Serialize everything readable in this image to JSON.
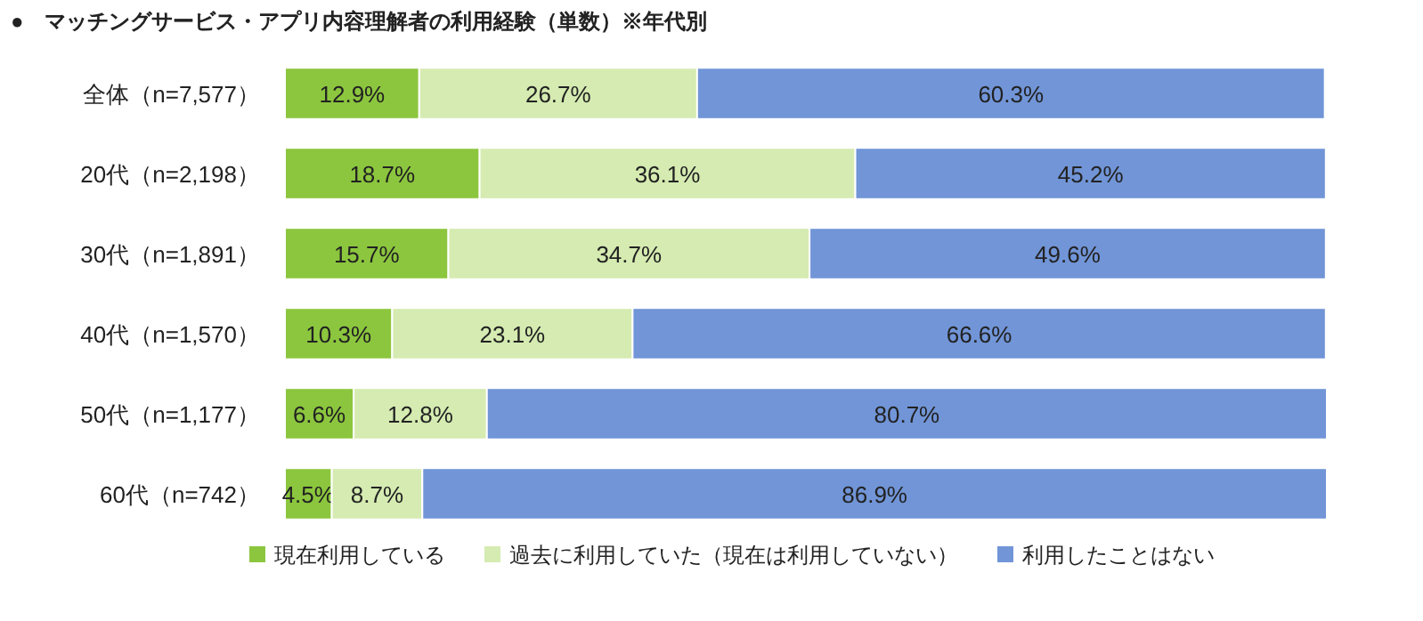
{
  "chart_data": {
    "type": "bar",
    "orientation": "horizontal",
    "stacked": true,
    "legend": "bottom",
    "title": "●　マッチングサービス・アプリ内容理解者の利用経験（単数）※年代別",
    "categories": [
      "全体（n=7,577）",
      "20代（n=2,198）",
      "30代（n=1,891）",
      "40代（n=1,570）",
      "50代（n=1,177）",
      "60代（n=742）"
    ],
    "series": [
      {
        "name": "現在利用している",
        "color": "#8cc63e",
        "values": [
          12.9,
          18.7,
          15.7,
          10.3,
          6.6,
          4.5
        ],
        "value_labels": [
          "12.9%",
          "18.7%",
          "15.7%",
          "10.3%",
          "6.6%",
          "4.5%"
        ]
      },
      {
        "name": "過去に利用していた（現在は利用していない）",
        "color": "#d5ebb1",
        "values": [
          26.7,
          36.1,
          34.7,
          23.1,
          12.8,
          8.7
        ],
        "value_labels": [
          "26.7%",
          "36.1%",
          "34.7%",
          "23.1%",
          "12.8%",
          "8.7%"
        ]
      },
      {
        "name": "利用したことはない",
        "color": "#7195d7",
        "values": [
          60.3,
          45.2,
          49.6,
          66.6,
          80.7,
          86.9
        ],
        "value_labels": [
          "60.3%",
          "45.2%",
          "49.6%",
          "66.6%",
          "80.7%",
          "86.9%"
        ]
      }
    ]
  }
}
